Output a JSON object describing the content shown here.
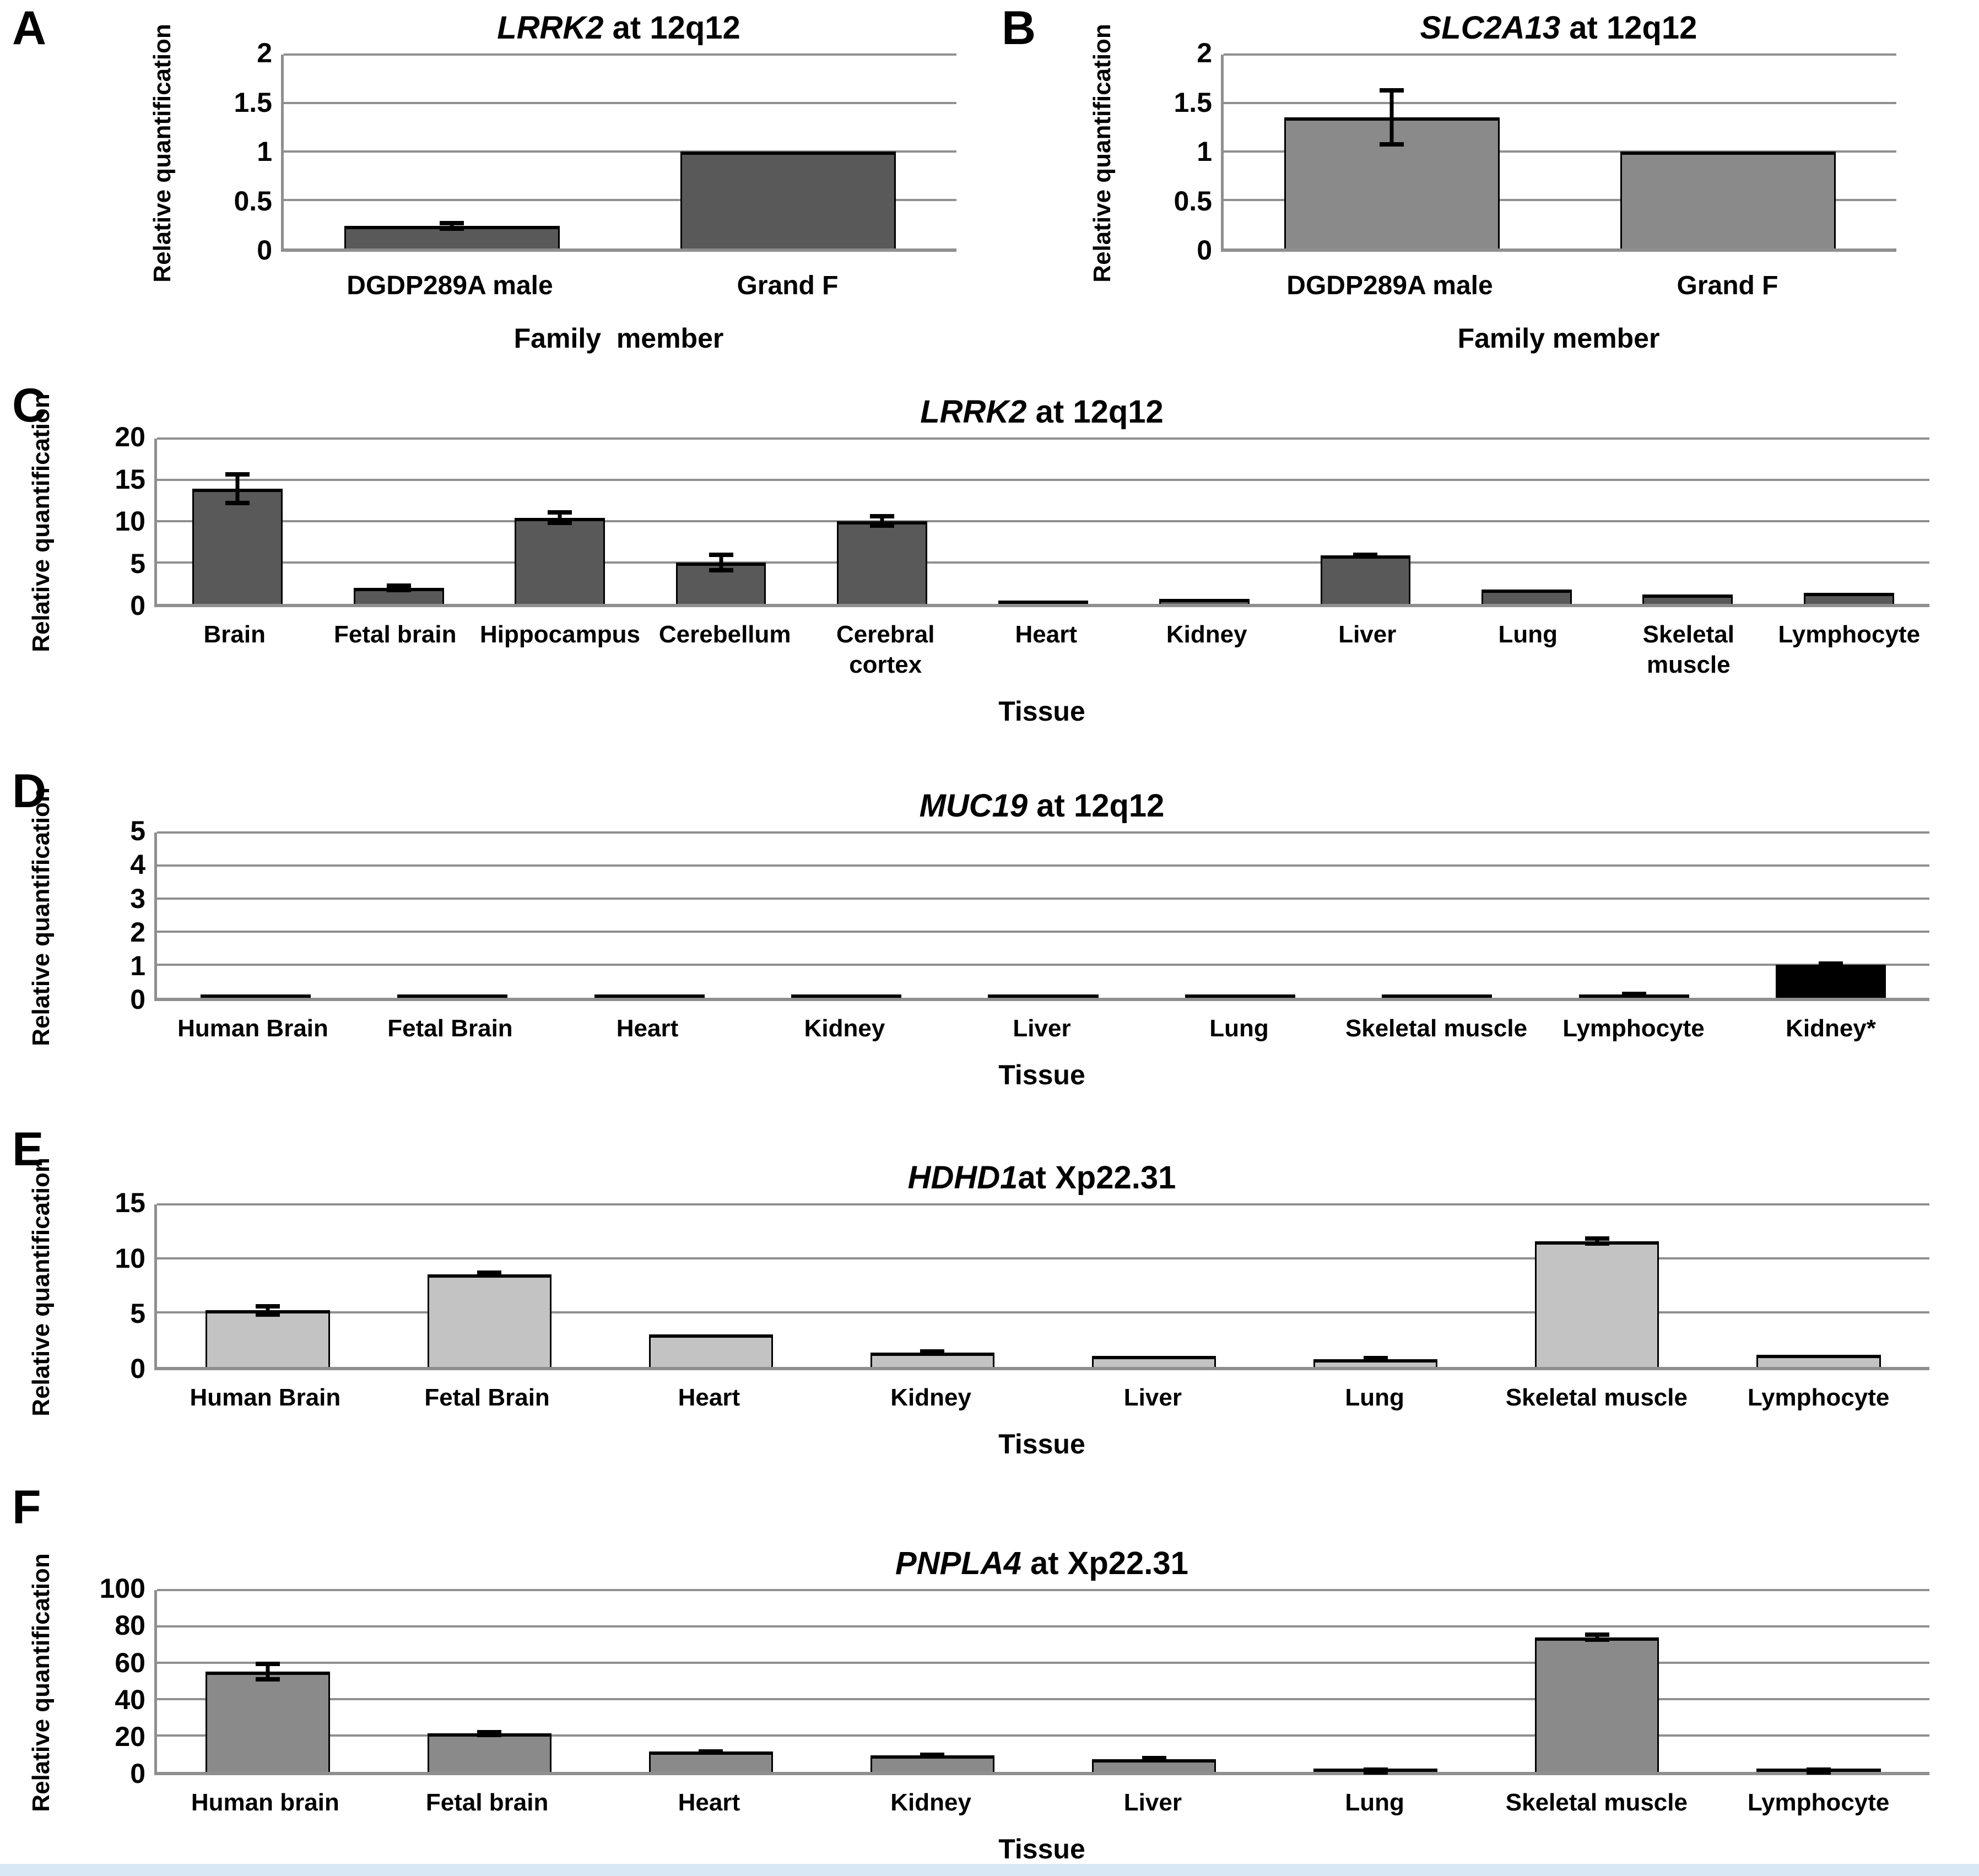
{
  "figure": {
    "background": "#ffffff",
    "axis_color": "#8f8f8f",
    "error_bar_color": "#000000",
    "bottom_strip_color": "#d9e8f5"
  },
  "chart_data": [
    {
      "panel": "A",
      "type": "bar",
      "title_gene": "LRRK2",
      "title_rest": " at 12q12",
      "ylabel": "Relative quantification",
      "xlabel": "Family  member",
      "ylim": [
        0,
        2
      ],
      "yticks": [
        0,
        0.5,
        1,
        1.5,
        2
      ],
      "grid": true,
      "legend": false,
      "bar_color": "#595959",
      "categories": [
        "DGDP289A male",
        "Grand F"
      ],
      "values": [
        0.23,
        1.0
      ],
      "errors": [
        0.05,
        0
      ]
    },
    {
      "panel": "B",
      "type": "bar",
      "title_gene": "SLC2A13",
      "title_rest": " at 12q12",
      "ylabel": "Relative quantification",
      "xlabel": "Family member",
      "ylim": [
        0,
        2
      ],
      "yticks": [
        0,
        0.5,
        1,
        1.5,
        2
      ],
      "grid": true,
      "legend": false,
      "bar_color": "#8a8a8a",
      "categories": [
        "DGDP289A male",
        "Grand F"
      ],
      "values": [
        1.35,
        1.0
      ],
      "errors": [
        0.3,
        0
      ]
    },
    {
      "panel": "C",
      "type": "bar",
      "title_gene": "LRRK2",
      "title_rest": " at 12q12",
      "ylabel": "Relative quantification",
      "xlabel": "Tissue",
      "ylim": [
        0,
        20
      ],
      "yticks": [
        0,
        5,
        10,
        15,
        20
      ],
      "grid": true,
      "legend": false,
      "bar_color": "#595959",
      "categories": [
        "Brain",
        "Fetal brain",
        "Hippocampus",
        "Cerebellum",
        "Cerebral cortex",
        "Heart",
        "Kidney",
        "Liver",
        "Lung",
        "Skeletal muscle",
        "Lymphocyte"
      ],
      "values": [
        13.9,
        1.9,
        10.4,
        5.0,
        10.0,
        0.3,
        0.55,
        5.85,
        1.7,
        1.1,
        1.3
      ],
      "errors": [
        2.0,
        0.55,
        0.9,
        1.2,
        0.85,
        0,
        0,
        0.35,
        0,
        0,
        0
      ]
    },
    {
      "panel": "D",
      "type": "bar",
      "title_gene": "MUC19",
      "title_rest": " at 12q12",
      "ylabel": "Relative quantification",
      "xlabel": "Tissue",
      "ylim": [
        0,
        5
      ],
      "yticks": [
        0,
        1,
        2,
        3,
        4,
        5
      ],
      "grid": true,
      "legend": false,
      "bar_color": "#000000",
      "categories": [
        "Human Brain",
        "Fetal Brain",
        "Heart",
        "Kidney",
        "Liver",
        "Lung",
        "Skeletal muscle",
        "Lymphocyte",
        "Kidney*"
      ],
      "values": [
        0.03,
        0.04,
        0.03,
        0.03,
        0.03,
        0.04,
        0.04,
        0.09,
        1.0
      ],
      "errors": [
        0,
        0,
        0,
        0,
        0,
        0,
        0,
        0.05,
        0.04
      ]
    },
    {
      "panel": "E",
      "type": "bar",
      "title_gene": "HDHD1",
      "title_rest": "at Xp22.31",
      "ylabel": "Relative quantification",
      "xlabel": "Tissue",
      "ylim": [
        0,
        15
      ],
      "yticks": [
        0,
        5,
        10,
        15
      ],
      "grid": true,
      "legend": false,
      "bar_color": "#c3c3c3",
      "categories": [
        "Human Brain",
        "Fetal Brain",
        "Heart",
        "Kidney",
        "Liver",
        "Lung",
        "Skeletal muscle",
        "Lymphocyte"
      ],
      "values": [
        5.2,
        8.55,
        3.0,
        1.3,
        1.0,
        0.7,
        11.6,
        1.1
      ],
      "errors": [
        0.6,
        0.35,
        0,
        0.1,
        0,
        0.1,
        0.45,
        0
      ]
    },
    {
      "panel": "F",
      "type": "bar",
      "title_gene": "PNPLA4",
      "title_rest": " at Xp22.31",
      "ylabel": "Relative quantification",
      "xlabel": "Tissue",
      "ylim": [
        0,
        100
      ],
      "yticks": [
        0,
        20,
        40,
        60,
        80,
        100
      ],
      "grid": true,
      "legend": false,
      "bar_color": "#8a8a8a",
      "categories": [
        "Human brain",
        "Fetal brain",
        "Heart",
        "Kidney",
        "Liver",
        "Lung",
        "Skeletal muscle",
        "Lymphocyte"
      ],
      "values": [
        55,
        21,
        11,
        9,
        7,
        0.3,
        74,
        0.3
      ],
      "errors": [
        5.5,
        2.0,
        1.2,
        1.5,
        0.6,
        0.6,
        2.5,
        0.6
      ]
    }
  ]
}
